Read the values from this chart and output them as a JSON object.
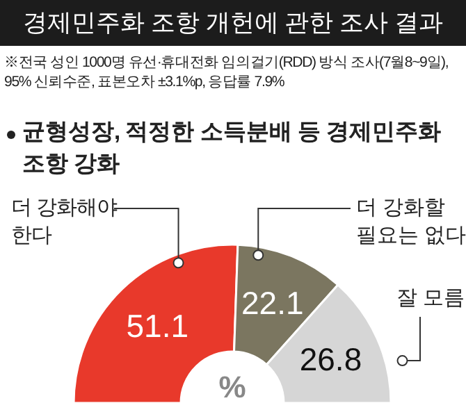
{
  "chart_data": {
    "type": "donut",
    "title": "경제민주화 조항 개헌에 관한 조사 결과",
    "subtitle": "균형성장, 적정한 소득분배 등 경제민주화 조항 강화",
    "annotations": [
      "※전국 성인 1000명 유선·휴대전화 임의걸기(RDD) 방식 조사(7월8~9일), 95% 신뢰수준, 표본오차 ±3.1%p, 응답률 7.9%",
      "%"
    ],
    "categories": [
      "더 강화해야 한다",
      "더 강화할 필요는 없다",
      "잘 모름"
    ],
    "values": [
      51.1,
      22.1,
      26.8
    ],
    "colors": [
      "#e8392b",
      "#7b7660",
      "#d6d6d6"
    ],
    "data_labels": true
  }
}
